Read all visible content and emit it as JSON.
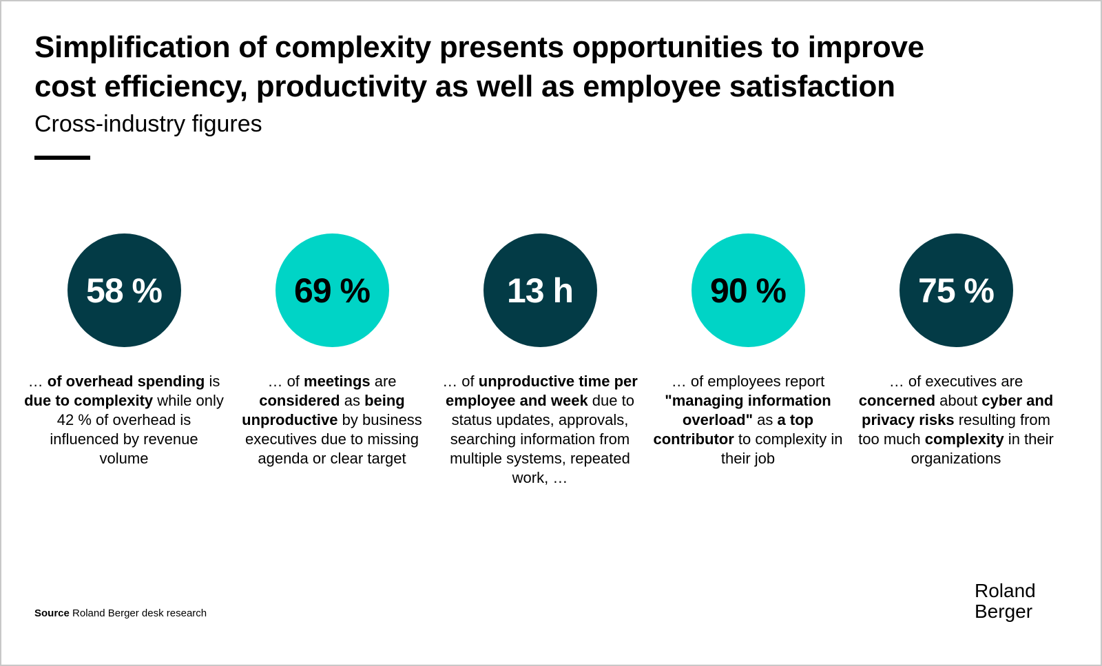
{
  "title_lines": [
    "Simplification of complexity presents opportunities to improve",
    "cost efficiency, productivity as well as employee satisfaction"
  ],
  "subtitle": "Cross-industry figures",
  "colors": {
    "dark": "#033b46",
    "teal": "#00d4c6"
  },
  "stats": [
    {
      "value": "58 %",
      "style": "dark",
      "segments": [
        {
          "t": "… ",
          "b": false
        },
        {
          "t": "of overhead spending",
          "b": true
        },
        {
          "t": " is ",
          "b": false
        },
        {
          "t": "due to complexity",
          "b": true
        },
        {
          "t": " while only 42 % of overhead is influenced by revenue volume",
          "b": false
        }
      ]
    },
    {
      "value": "69 %",
      "style": "teal",
      "segments": [
        {
          "t": "… of ",
          "b": false
        },
        {
          "t": "meetings",
          "b": true
        },
        {
          "t": " are ",
          "b": false
        },
        {
          "t": "considered",
          "b": true
        },
        {
          "t": " as ",
          "b": false
        },
        {
          "t": "being unproductive",
          "b": true
        },
        {
          "t": " by business executives due to missing agenda or clear target",
          "b": false
        }
      ]
    },
    {
      "value": "13 h",
      "style": "dark",
      "segments": [
        {
          "t": "… of ",
          "b": false
        },
        {
          "t": "unproductive time per employee and week",
          "b": true
        },
        {
          "t": " due to status updates, approvals, searching information from multiple systems, repeated work, …",
          "b": false
        }
      ]
    },
    {
      "value": "90 %",
      "style": "teal",
      "segments": [
        {
          "t": "… of employees report ",
          "b": false
        },
        {
          "t": "\"managing information overload\"",
          "b": true
        },
        {
          "t": " as ",
          "b": false
        },
        {
          "t": "a top contributor",
          "b": true
        },
        {
          "t": " to complexity in their job",
          "b": false
        }
      ]
    },
    {
      "value": "75 %",
      "style": "dark",
      "segments": [
        {
          "t": "… of executives are ",
          "b": false
        },
        {
          "t": "concerned",
          "b": true
        },
        {
          "t": " about ",
          "b": false
        },
        {
          "t": "cyber and privacy risks",
          "b": true
        },
        {
          "t": " resulting from too much ",
          "b": false
        },
        {
          "t": "complexity",
          "b": true
        },
        {
          "t": " in their organizations",
          "b": false
        }
      ]
    }
  ],
  "source": {
    "label": "Source",
    "text": " Roland Berger desk research"
  },
  "logo": {
    "line1": "Roland",
    "line2": "Berger"
  }
}
